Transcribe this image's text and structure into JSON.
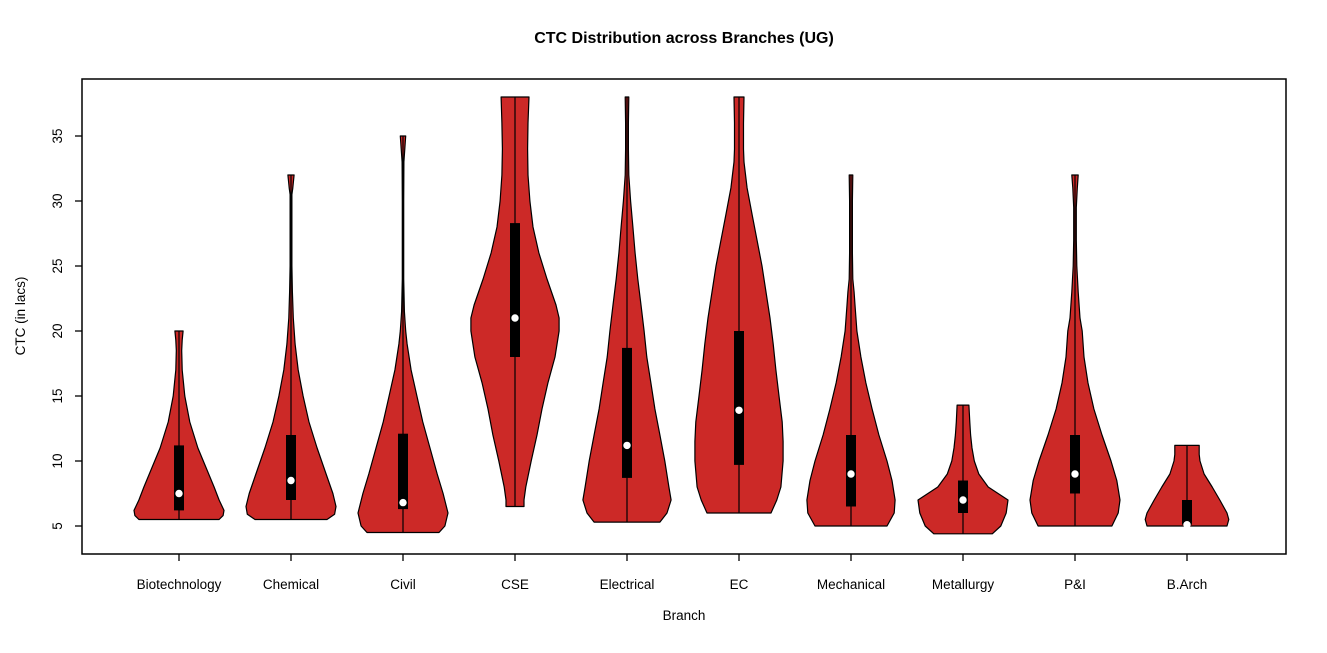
{
  "window": {
    "kind": "r-plot-device",
    "background": "#ffffff"
  },
  "colors": {
    "violin_fill": "#CC2927",
    "violin_stroke": "#000000",
    "box_fill": "#000000",
    "whisker_line": "#000000",
    "median_dot": "#ffffff",
    "plot_border": "#000000",
    "text": "#000000"
  },
  "chart_data": {
    "type": "violin",
    "title": "CTC Distribution across Branches (UG)",
    "xlabel": "Branch",
    "ylabel": "CTC (in lacs)",
    "y_ticks": [
      5,
      10,
      15,
      20,
      25,
      30,
      35
    ],
    "ylim": [
      2.9,
      39.4
    ],
    "grid": "off",
    "legend": "none",
    "categories": [
      "Biotechnology",
      "Chemical",
      "Civil",
      "CSE",
      "Electrical",
      "EC",
      "Mechanical",
      "Metallurgy",
      "P&I",
      "B.Arch"
    ],
    "series": [
      {
        "name": "Biotechnology",
        "min": 5.5,
        "q1": 6.2,
        "median": 7.5,
        "q3": 11.2,
        "max": 20,
        "profile": [
          [
            20,
            0.09
          ],
          [
            19.3,
            0.07
          ],
          [
            18.5,
            0.06
          ],
          [
            17,
            0.07
          ],
          [
            15,
            0.13
          ],
          [
            13,
            0.24
          ],
          [
            11,
            0.42
          ],
          [
            9.5,
            0.6
          ],
          [
            8,
            0.78
          ],
          [
            7,
            0.89
          ],
          [
            6.2,
            1.0
          ],
          [
            5.8,
            0.98
          ],
          [
            5.5,
            0.89
          ]
        ]
      },
      {
        "name": "Chemical",
        "min": 5.5,
        "q1": 7.0,
        "median": 8.5,
        "q3": 12.0,
        "max": 32,
        "profile": [
          [
            32,
            0.07
          ],
          [
            31,
            0.04
          ],
          [
            30.5,
            0.02
          ],
          [
            28,
            0.02
          ],
          [
            25,
            0.02
          ],
          [
            23,
            0.03
          ],
          [
            21,
            0.05
          ],
          [
            19,
            0.09
          ],
          [
            17,
            0.16
          ],
          [
            15,
            0.27
          ],
          [
            13,
            0.4
          ],
          [
            11,
            0.58
          ],
          [
            9,
            0.78
          ],
          [
            7.5,
            0.93
          ],
          [
            6.5,
            1.0
          ],
          [
            5.9,
            0.97
          ],
          [
            5.5,
            0.8
          ]
        ]
      },
      {
        "name": "Civil",
        "min": 4.5,
        "q1": 6.3,
        "median": 6.8,
        "q3": 12.1,
        "max": 35,
        "profile": [
          [
            35,
            0.06
          ],
          [
            34,
            0.04
          ],
          [
            33,
            0.02
          ],
          [
            30,
            0.015
          ],
          [
            27,
            0.015
          ],
          [
            24,
            0.015
          ],
          [
            21.5,
            0.03
          ],
          [
            20,
            0.06
          ],
          [
            19,
            0.09
          ],
          [
            17,
            0.18
          ],
          [
            15,
            0.31
          ],
          [
            13,
            0.44
          ],
          [
            11,
            0.6
          ],
          [
            9,
            0.76
          ],
          [
            7.5,
            0.89
          ],
          [
            6,
            1.0
          ],
          [
            5,
            0.93
          ],
          [
            4.5,
            0.8
          ]
        ]
      },
      {
        "name": "CSE",
        "min": 6.5,
        "q1": 18.0,
        "median": 21.0,
        "q3": 28.3,
        "max": 38,
        "profile": [
          [
            38,
            0.31
          ],
          [
            36,
            0.29
          ],
          [
            34,
            0.28
          ],
          [
            32,
            0.29
          ],
          [
            30,
            0.33
          ],
          [
            28,
            0.4
          ],
          [
            26,
            0.53
          ],
          [
            24,
            0.71
          ],
          [
            22,
            0.91
          ],
          [
            21,
            0.98
          ],
          [
            20,
            0.98
          ],
          [
            18,
            0.89
          ],
          [
            16,
            0.73
          ],
          [
            14,
            0.6
          ],
          [
            12,
            0.49
          ],
          [
            10,
            0.36
          ],
          [
            8,
            0.24
          ],
          [
            7,
            0.2
          ],
          [
            6.5,
            0.2
          ]
        ]
      },
      {
        "name": "Electrical",
        "min": 5.3,
        "q1": 8.7,
        "median": 11.2,
        "q3": 18.7,
        "max": 38,
        "profile": [
          [
            38,
            0.04
          ],
          [
            36,
            0.03
          ],
          [
            34,
            0.03
          ],
          [
            32,
            0.04
          ],
          [
            31,
            0.06
          ],
          [
            30,
            0.08
          ],
          [
            28,
            0.13
          ],
          [
            26,
            0.18
          ],
          [
            24,
            0.24
          ],
          [
            22,
            0.31
          ],
          [
            20,
            0.38
          ],
          [
            18,
            0.44
          ],
          [
            16,
            0.53
          ],
          [
            14,
            0.62
          ],
          [
            12,
            0.73
          ],
          [
            10,
            0.84
          ],
          [
            8,
            0.93
          ],
          [
            7,
            0.98
          ],
          [
            6,
            0.89
          ],
          [
            5.3,
            0.73
          ]
        ]
      },
      {
        "name": "EC",
        "min": 6.0,
        "q1": 9.7,
        "median": 13.9,
        "q3": 20.0,
        "max": 38,
        "profile": [
          [
            38,
            0.11
          ],
          [
            36,
            0.1
          ],
          [
            34,
            0.1
          ],
          [
            33,
            0.11
          ],
          [
            31,
            0.18
          ],
          [
            29,
            0.29
          ],
          [
            27,
            0.4
          ],
          [
            25,
            0.51
          ],
          [
            23,
            0.6
          ],
          [
            21,
            0.69
          ],
          [
            19,
            0.76
          ],
          [
            17,
            0.82
          ],
          [
            15,
            0.89
          ],
          [
            13,
            0.96
          ],
          [
            11.5,
            0.98
          ],
          [
            10,
            0.98
          ],
          [
            8,
            0.93
          ],
          [
            7,
            0.84
          ],
          [
            6,
            0.71
          ]
        ]
      },
      {
        "name": "Mechanical",
        "min": 5.0,
        "q1": 6.5,
        "median": 9.0,
        "q3": 12.0,
        "max": 32,
        "profile": [
          [
            32,
            0.04
          ],
          [
            30,
            0.03
          ],
          [
            28,
            0.03
          ],
          [
            26,
            0.03
          ],
          [
            24,
            0.04
          ],
          [
            23,
            0.07
          ],
          [
            22,
            0.09
          ],
          [
            20,
            0.13
          ],
          [
            18,
            0.22
          ],
          [
            16,
            0.33
          ],
          [
            14,
            0.47
          ],
          [
            12,
            0.62
          ],
          [
            10,
            0.8
          ],
          [
            8.5,
            0.91
          ],
          [
            7,
            0.98
          ],
          [
            6,
            0.96
          ],
          [
            5,
            0.8
          ]
        ]
      },
      {
        "name": "Metallurgy",
        "min": 4.4,
        "q1": 6.0,
        "median": 7.0,
        "q3": 8.5,
        "max": 14.3,
        "profile": [
          [
            14.3,
            0.13
          ],
          [
            13,
            0.15
          ],
          [
            12,
            0.17
          ],
          [
            11,
            0.2
          ],
          [
            10,
            0.25
          ],
          [
            9,
            0.35
          ],
          [
            8,
            0.56
          ],
          [
            7,
            1.0
          ],
          [
            6,
            0.96
          ],
          [
            5,
            0.84
          ],
          [
            4.4,
            0.65
          ]
        ]
      },
      {
        "name": "P&I",
        "min": 5.0,
        "q1": 7.5,
        "median": 9.0,
        "q3": 12.0,
        "max": 32,
        "profile": [
          [
            32,
            0.07
          ],
          [
            31,
            0.05
          ],
          [
            29.5,
            0.03
          ],
          [
            27,
            0.03
          ],
          [
            25,
            0.04
          ],
          [
            23,
            0.07
          ],
          [
            21,
            0.11
          ],
          [
            20,
            0.16
          ],
          [
            19,
            0.18
          ],
          [
            18,
            0.2
          ],
          [
            16,
            0.29
          ],
          [
            14,
            0.42
          ],
          [
            12,
            0.6
          ],
          [
            10,
            0.8
          ],
          [
            8.5,
            0.93
          ],
          [
            7,
            1.0
          ],
          [
            6,
            0.96
          ],
          [
            5,
            0.82
          ]
        ]
      },
      {
        "name": "B.Arch",
        "min": 5.0,
        "q1": 5.1,
        "median": 5.1,
        "q3": 7.0,
        "max": 11.2,
        "profile": [
          [
            11.2,
            0.27
          ],
          [
            10.5,
            0.27
          ],
          [
            10,
            0.29
          ],
          [
            9,
            0.38
          ],
          [
            8,
            0.56
          ],
          [
            7,
            0.73
          ],
          [
            6,
            0.89
          ],
          [
            5.5,
            0.93
          ],
          [
            5,
            0.89
          ]
        ]
      }
    ]
  }
}
